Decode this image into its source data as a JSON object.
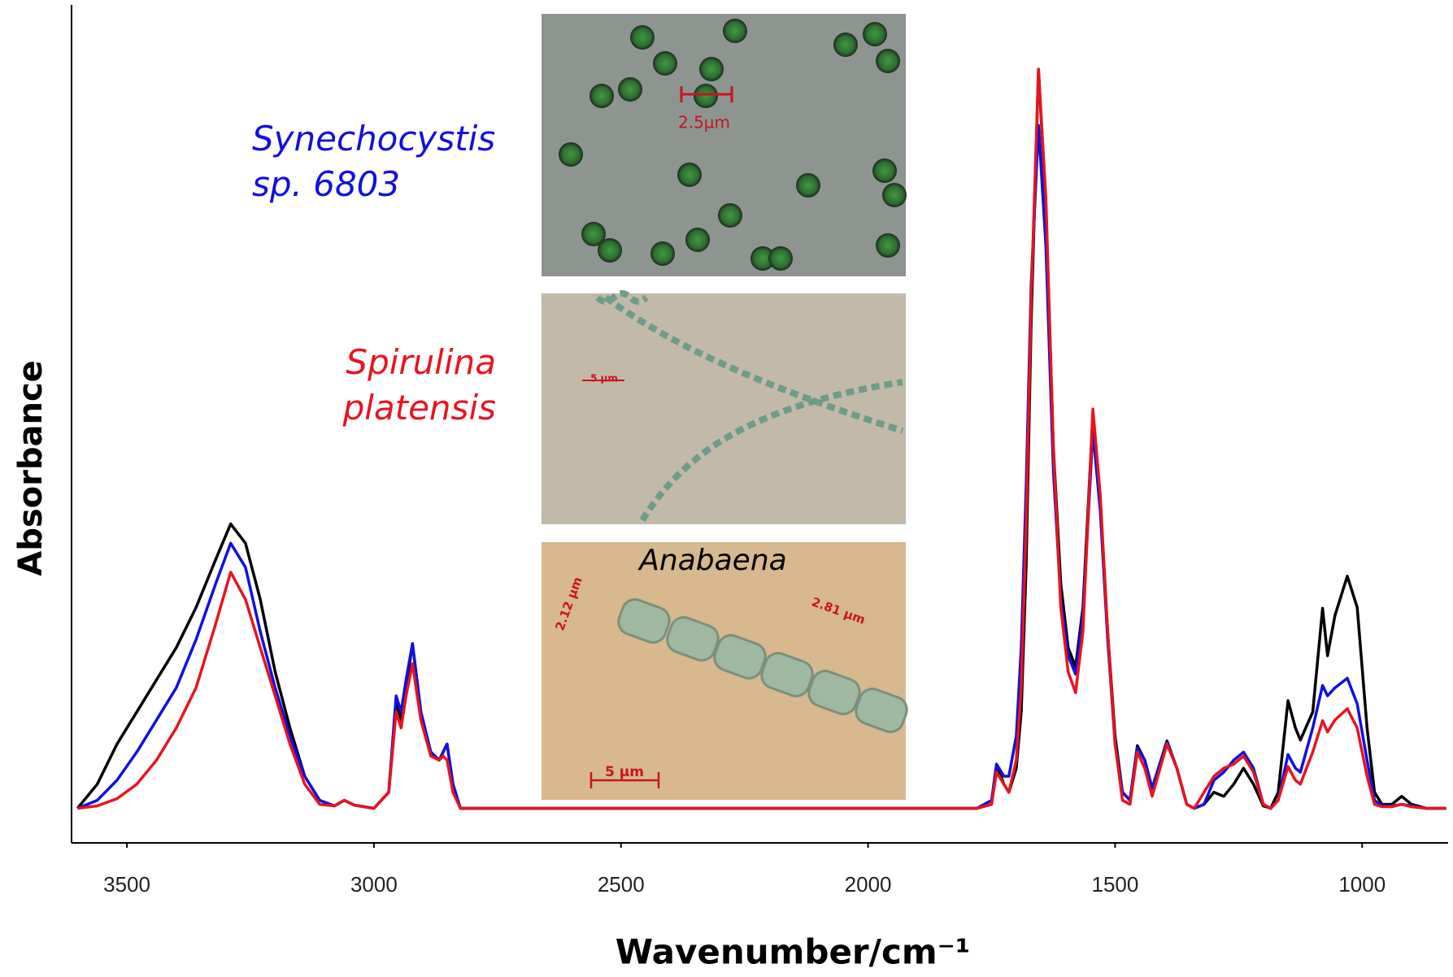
{
  "chart_data": {
    "type": "line",
    "x_label": "Wavenumber/cm⁻¹",
    "y_label": "Absorbance",
    "xlim": [
      3612,
      826
    ],
    "ylim": [
      -0.043,
      1.0
    ],
    "xticks": [
      3500,
      3000,
      2500,
      2000,
      1500,
      1000
    ],
    "x": [
      3600,
      3560,
      3520,
      3480,
      3440,
      3400,
      3360,
      3320,
      3290,
      3260,
      3230,
      3200,
      3170,
      3140,
      3110,
      3080,
      3060,
      3040,
      3000,
      2970,
      2955,
      2945,
      2935,
      2922,
      2905,
      2885,
      2868,
      2860,
      2852,
      2840,
      2825,
      2400,
      1780,
      1750,
      1740,
      1725,
      1715,
      1700,
      1690,
      1680,
      1670,
      1655,
      1640,
      1625,
      1610,
      1595,
      1580,
      1565,
      1545,
      1530,
      1515,
      1500,
      1485,
      1470,
      1455,
      1440,
      1425,
      1395,
      1375,
      1355,
      1340,
      1320,
      1300,
      1280,
      1260,
      1240,
      1220,
      1200,
      1185,
      1170,
      1150,
      1135,
      1125,
      1100,
      1080,
      1070,
      1055,
      1030,
      1010,
      990,
      975,
      960,
      940,
      920,
      900,
      870,
      830
    ],
    "series": [
      {
        "name": "Anabaena",
        "color": "#000000",
        "values": [
          0,
          0.03,
          0.08,
          0.12,
          0.16,
          0.2,
          0.25,
          0.31,
          0.354,
          0.33,
          0.26,
          0.17,
          0.1,
          0.04,
          0.01,
          0.003,
          0.01,
          0.004,
          0,
          0.02,
          0.13,
          0.11,
          0.15,
          0.205,
          0.12,
          0.07,
          0.06,
          0.07,
          0.08,
          0.03,
          0,
          0,
          0,
          0.005,
          0.055,
          0.03,
          0.02,
          0.05,
          0.12,
          0.3,
          0.6,
          0.92,
          0.75,
          0.45,
          0.28,
          0.2,
          0.176,
          0.25,
          0.49,
          0.38,
          0.22,
          0.09,
          0.02,
          0.01,
          0.078,
          0.06,
          0.025,
          0.084,
          0.05,
          0.005,
          0,
          0.005,
          0.02,
          0.015,
          0.03,
          0.05,
          0.03,
          0.003,
          0,
          0.02,
          0.134,
          0.1,
          0.085,
          0.12,
          0.249,
          0.19,
          0.24,
          0.289,
          0.25,
          0.1,
          0.02,
          0.005,
          0.005,
          0.015,
          0.005,
          0,
          0
        ]
      },
      {
        "name": "Synechocystis sp. 6803",
        "color": "#1010e0",
        "values": [
          0,
          0.01,
          0.035,
          0.07,
          0.11,
          0.15,
          0.21,
          0.28,
          0.33,
          0.3,
          0.22,
          0.15,
          0.09,
          0.04,
          0.01,
          0.003,
          0.01,
          0.004,
          0,
          0.02,
          0.14,
          0.12,
          0.16,
          0.205,
          0.12,
          0.07,
          0.06,
          0.07,
          0.08,
          0.03,
          0,
          0,
          0,
          0.01,
          0.055,
          0.04,
          0.04,
          0.09,
          0.2,
          0.4,
          0.65,
          0.85,
          0.7,
          0.42,
          0.26,
          0.19,
          0.167,
          0.24,
          0.47,
          0.37,
          0.21,
          0.08,
          0.02,
          0.01,
          0.075,
          0.06,
          0.025,
          0.082,
          0.05,
          0.005,
          0,
          0.005,
          0.035,
          0.045,
          0.06,
          0.07,
          0.05,
          0.005,
          0,
          0.01,
          0.067,
          0.05,
          0.045,
          0.1,
          0.153,
          0.14,
          0.15,
          0.162,
          0.13,
          0.06,
          0.01,
          0.003,
          0.003,
          0.005,
          0.003,
          0,
          0
        ]
      },
      {
        "name": "Spirulina platensis",
        "color": "#e8141e",
        "values": [
          0,
          0.003,
          0.012,
          0.03,
          0.06,
          0.1,
          0.15,
          0.23,
          0.294,
          0.26,
          0.2,
          0.14,
          0.08,
          0.03,
          0.005,
          0.003,
          0.01,
          0.004,
          0,
          0.02,
          0.12,
          0.1,
          0.14,
          0.18,
          0.11,
          0.065,
          0.06,
          0.065,
          0.06,
          0.02,
          0,
          0,
          0,
          0.005,
          0.045,
          0.03,
          0.02,
          0.06,
          0.15,
          0.35,
          0.63,
          0.92,
          0.76,
          0.45,
          0.25,
          0.17,
          0.144,
          0.22,
          0.497,
          0.39,
          0.22,
          0.08,
          0.01,
          0.005,
          0.07,
          0.05,
          0.015,
          0.08,
          0.05,
          0.005,
          0,
          0.02,
          0.04,
          0.05,
          0.055,
          0.065,
          0.045,
          0.005,
          0,
          0.01,
          0.052,
          0.035,
          0.03,
          0.07,
          0.109,
          0.095,
          0.11,
          0.124,
          0.1,
          0.04,
          0.005,
          0.002,
          0.002,
          0.005,
          0.002,
          0,
          0
        ]
      }
    ],
    "annotations": [
      "2.5µm",
      "5 µm",
      "2.12 µm",
      "2.81 µm",
      "5 µm"
    ]
  }
}
